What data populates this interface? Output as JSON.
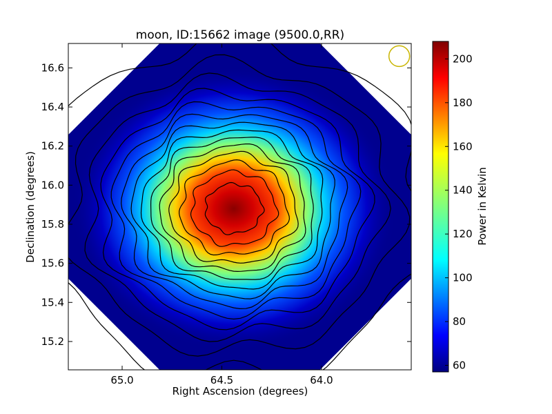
{
  "chart_data": {
    "type": "heatmap",
    "title": "moon, ID:15662 image (9500.0,RR)",
    "xlabel": "Right Ascension (degrees)",
    "ylabel": "Declination (degrees)",
    "x_reversed": true,
    "xlim": [
      65.27,
      63.55
    ],
    "ylim": [
      15.055,
      16.725
    ],
    "x_ticks": [
      65.0,
      64.5,
      64.0
    ],
    "x_tick_labels": [
      "65.0",
      "64.5",
      "64.0"
    ],
    "y_ticks": [
      15.2,
      15.4,
      15.6,
      15.8,
      16.0,
      16.2,
      16.4,
      16.6
    ],
    "y_tick_labels": [
      "15.2",
      "15.4",
      "15.6",
      "15.8",
      "16.0",
      "16.2",
      "16.4",
      "16.6"
    ],
    "colormap": "jet",
    "colorbar": {
      "label": "Power in Kelvin",
      "vmin": 57,
      "vmax": 208,
      "ticks": [
        60,
        80,
        100,
        120,
        140,
        160,
        180,
        200
      ],
      "tick_labels": [
        "60",
        "80",
        "100",
        "120",
        "140",
        "160",
        "180",
        "200"
      ]
    },
    "source": {
      "center_ra": 64.44,
      "center_dec": 15.88,
      "peak_kelvin": 207,
      "background_kelvin": 60
    },
    "field_edge_kelvin": 57,
    "contour_levels_kelvin": [
      68,
      78,
      88,
      98,
      108,
      118,
      128,
      138,
      148,
      158,
      168,
      178,
      188,
      198
    ],
    "beam_marker": {
      "ra": 63.61,
      "dec": 16.66,
      "color": "#c8b400"
    }
  }
}
